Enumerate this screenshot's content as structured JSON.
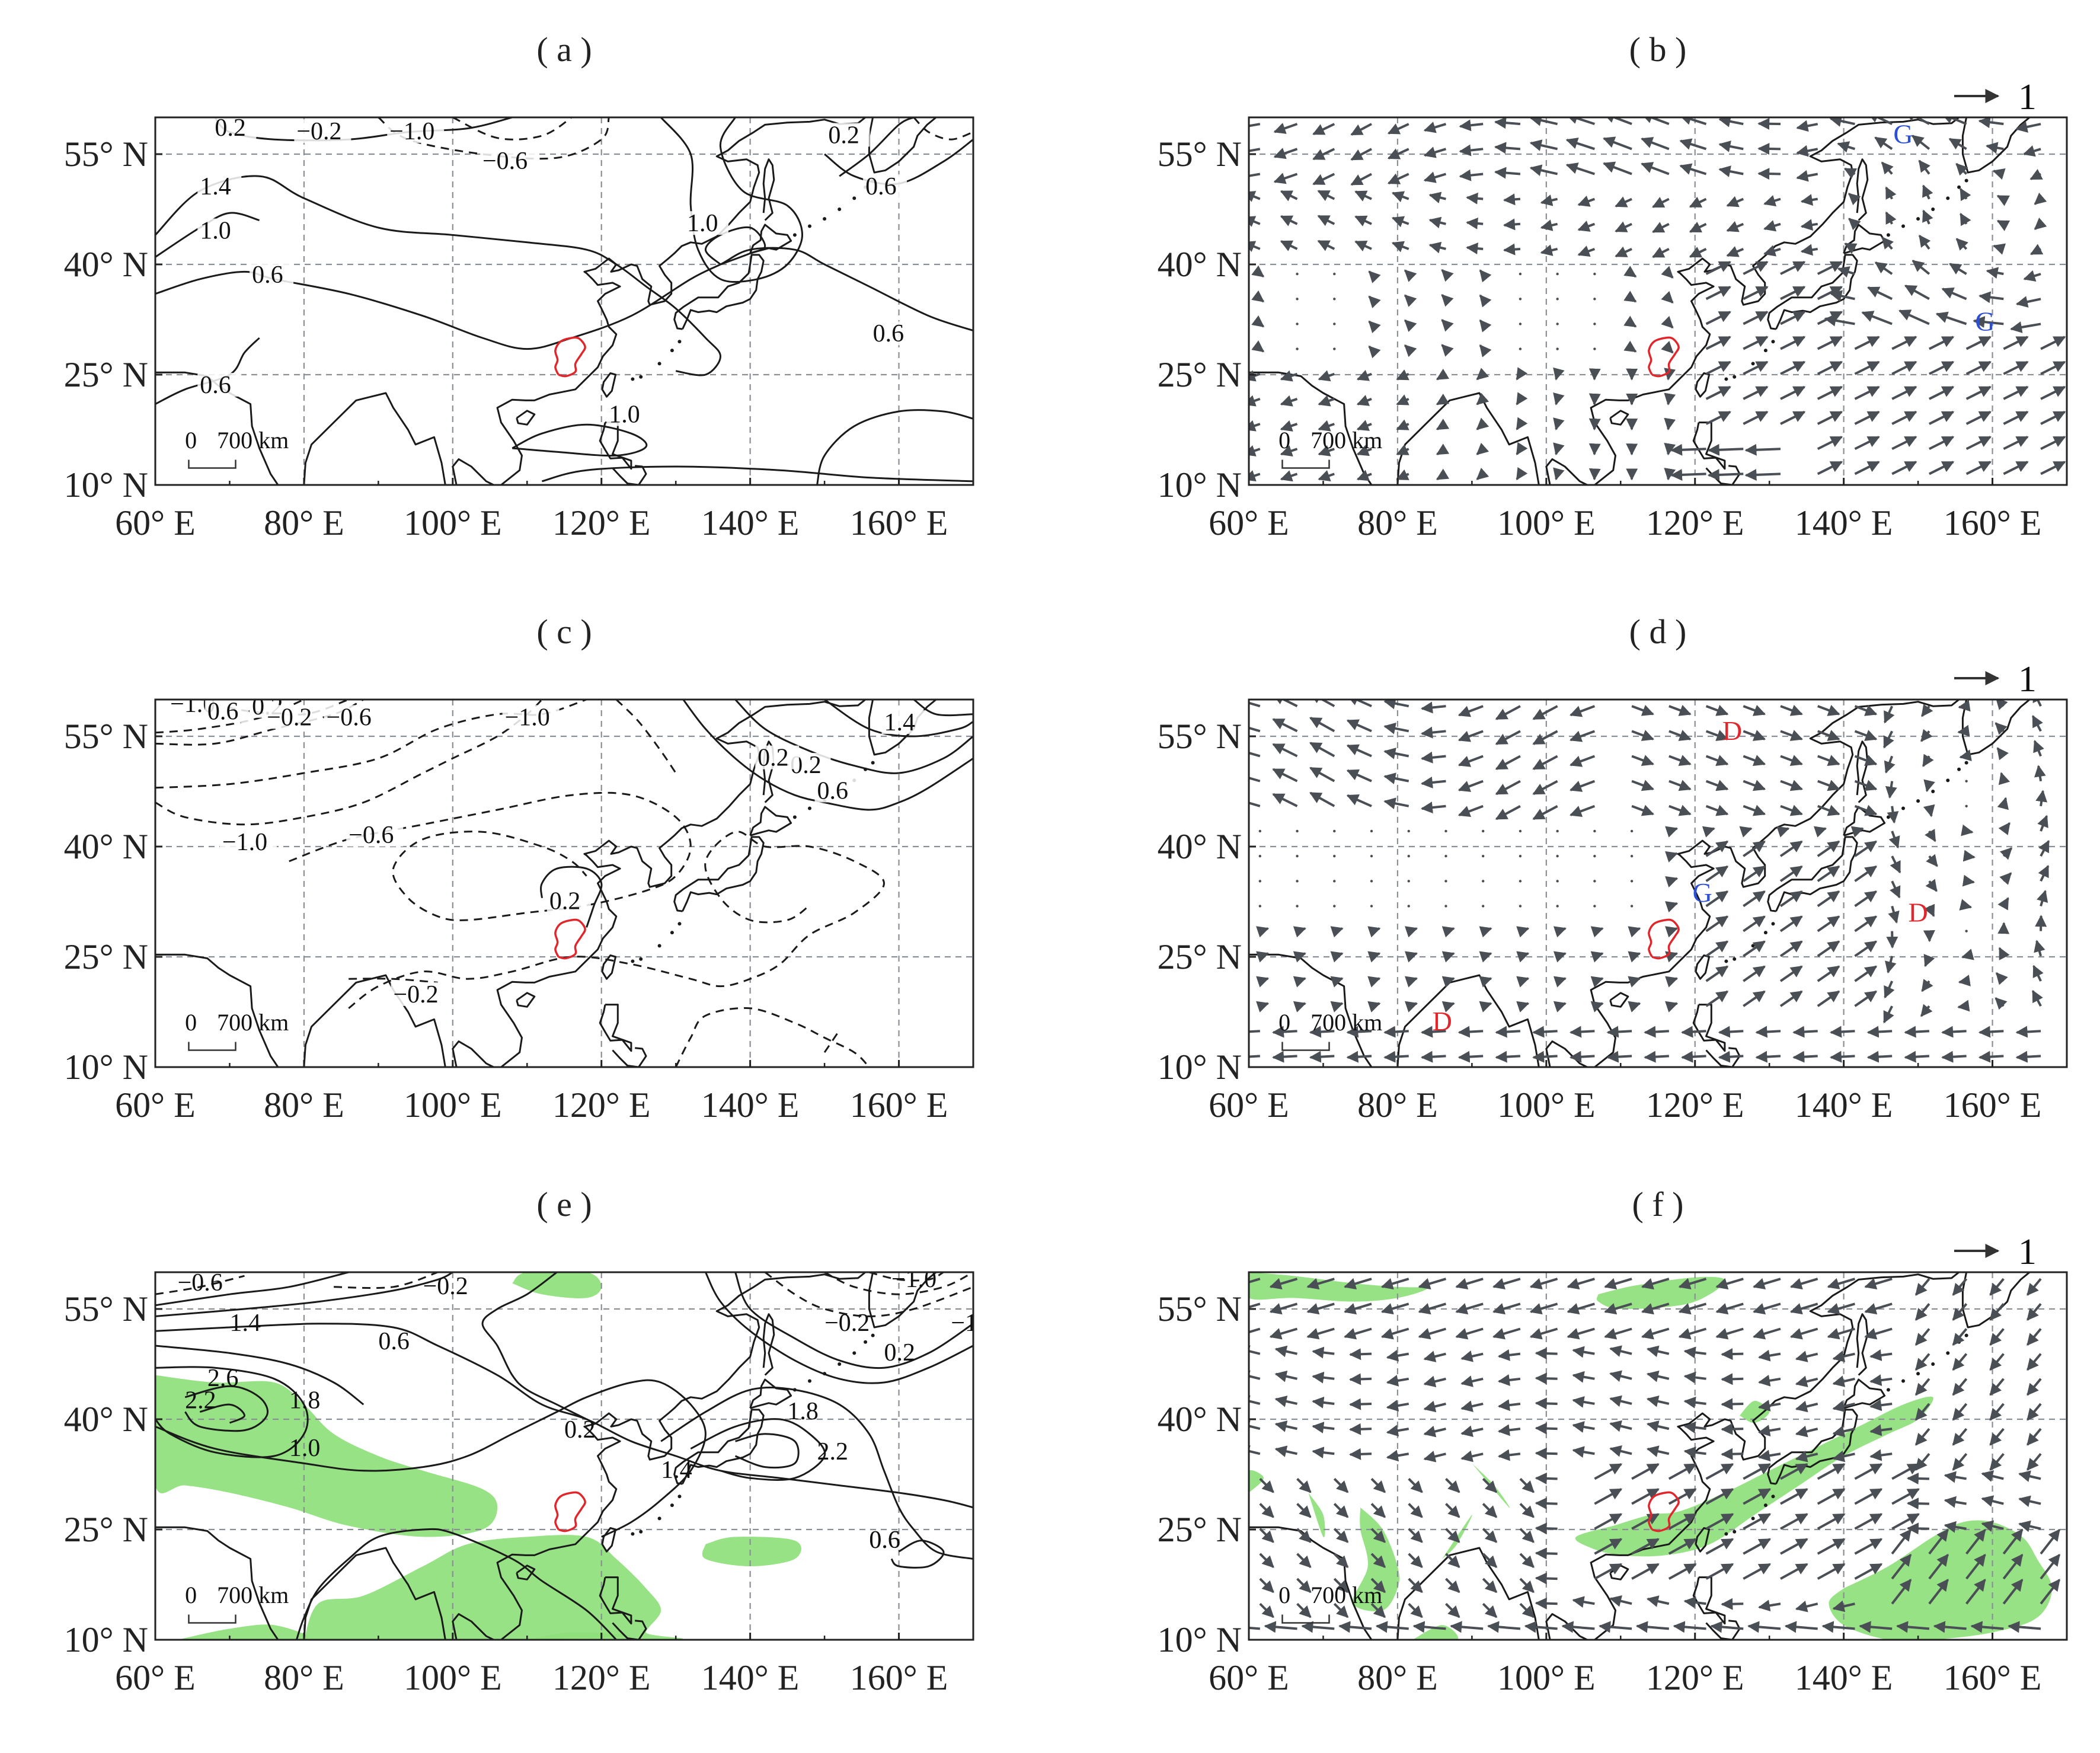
{
  "figure": {
    "panels": [
      {
        "id": "a",
        "title": "( a )",
        "kind": "contour",
        "contour_labels": [
          "0.2",
          "-0.2",
          "-1.0",
          "-0.6",
          "1.4",
          "1.0",
          "0.6",
          "1.0",
          "0.2",
          "0.6",
          "0.6",
          "0.6",
          "1.0"
        ],
        "shading": false,
        "markers": []
      },
      {
        "id": "b",
        "title": "( b )",
        "kind": "vector",
        "reference_vector": "1",
        "markers": [
          {
            "text": "G",
            "color": "#2b4fd6"
          },
          {
            "text": "G",
            "color": "#2b4fd6"
          }
        ]
      },
      {
        "id": "c",
        "title": "( c )",
        "kind": "contour",
        "contour_labels": [
          "-1.0",
          "0.6",
          "0.2",
          "-0.2",
          "-0.6",
          "-1.0",
          "-1.0",
          "-0.6",
          "0.2",
          "-0.2",
          "0.6",
          "0.2",
          "1.4",
          "-0.2"
        ],
        "shading": false,
        "markers": []
      },
      {
        "id": "d",
        "title": "( d )",
        "kind": "vector",
        "reference_vector": "1",
        "markers": [
          {
            "text": "D",
            "color": "#e0262b"
          },
          {
            "text": "G",
            "color": "#2b4fd6"
          },
          {
            "text": "D",
            "color": "#e0262b"
          },
          {
            "text": "D",
            "color": "#e0262b"
          }
        ]
      },
      {
        "id": "e",
        "title": "( e )",
        "kind": "contour",
        "contour_labels": [
          "-0.6",
          "-0.2",
          "1.4",
          "0.6",
          "2.6",
          "2.2",
          "1.8",
          "1.0",
          "0.2",
          "1.4",
          "0.6",
          "-0.2",
          "-1.0",
          "-1.4",
          "0.2",
          "1.8",
          "2.2",
          "0.6"
        ],
        "shading": true,
        "markers": []
      },
      {
        "id": "f",
        "title": "( f )",
        "kind": "vector",
        "reference_vector": "1",
        "shading": true,
        "markers": []
      }
    ],
    "x_axis": {
      "ticks": [
        "60° E",
        "80° E",
        "100° E",
        "120° E",
        "140° E",
        "160° E"
      ],
      "range": [
        60,
        170
      ]
    },
    "y_axis": {
      "ticks": [
        "10° N",
        "25° N",
        "40° N",
        "55° N"
      ],
      "range": [
        10,
        60
      ]
    },
    "scale_bar": {
      "zero": "0",
      "distance": "700 km"
    },
    "colors": {
      "region_outline": "#e0262b",
      "shading": "#8ee07a",
      "vector": "#4a4f55",
      "marker_blue": "#2b4fd6",
      "marker_red": "#e0262b"
    }
  }
}
